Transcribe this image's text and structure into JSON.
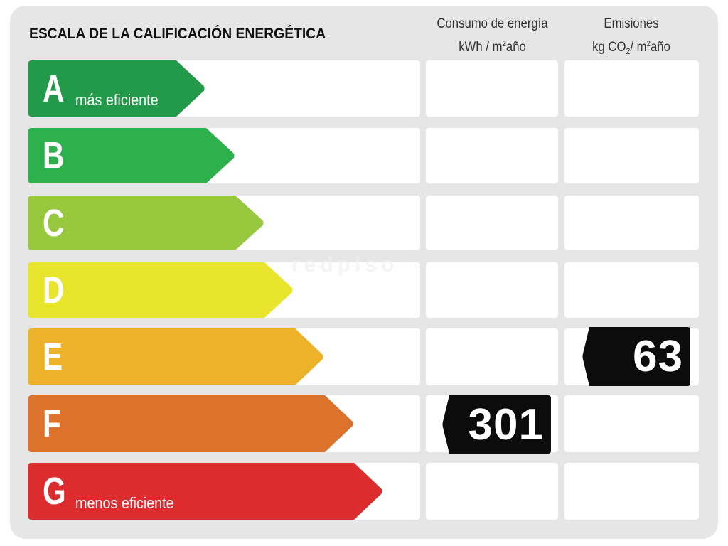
{
  "title": "ESCALA DE LA CALIFICACIÓN ENERGÉTICA",
  "columns": {
    "consumption": {
      "line1": "Consumo de energía",
      "line2_pre": "kWh / m",
      "line2_sup": "2",
      "line2_post": "año"
    },
    "emissions": {
      "line1": "Emisiones",
      "line2_pre": "kg CO",
      "line2_sub": "2",
      "line2_mid": "/ m",
      "line2_sup": "2",
      "line2_post": "año"
    }
  },
  "ratings": [
    {
      "letter": "A",
      "label": "más eficiente",
      "color": "#23994a"
    },
    {
      "letter": "B",
      "label": "",
      "color": "#2eb04c"
    },
    {
      "letter": "C",
      "label": "",
      "color": "#98c83e"
    },
    {
      "letter": "D",
      "label": "",
      "color": "#e8e52c"
    },
    {
      "letter": "E",
      "label": "",
      "color": "#ecb32a"
    },
    {
      "letter": "F",
      "label": "",
      "color": "#dc722c"
    },
    {
      "letter": "G",
      "label": "menos eficiente",
      "color": "#dc2c2e"
    }
  ],
  "results": {
    "consumption": {
      "value": "301",
      "rating": "F"
    },
    "emissions": {
      "value": "63",
      "rating": "E"
    }
  },
  "watermark": "redpiso",
  "chart_data": {
    "type": "table",
    "title": "ESCALA DE LA CALIFICACIÓN ENERGÉTICA",
    "categories": [
      "A",
      "B",
      "C",
      "D",
      "E",
      "F",
      "G"
    ],
    "columns": [
      "Consumo de energía kWh/m²año",
      "Emisiones kg CO2/m²año"
    ],
    "series": [
      {
        "name": "Consumo de energía (kWh/m²año)",
        "value": 301,
        "rating": "F"
      },
      {
        "name": "Emisiones (kg CO2/m²año)",
        "value": 63,
        "rating": "E"
      }
    ],
    "annotations": [
      "A: más eficiente",
      "G: menos eficiente"
    ]
  }
}
